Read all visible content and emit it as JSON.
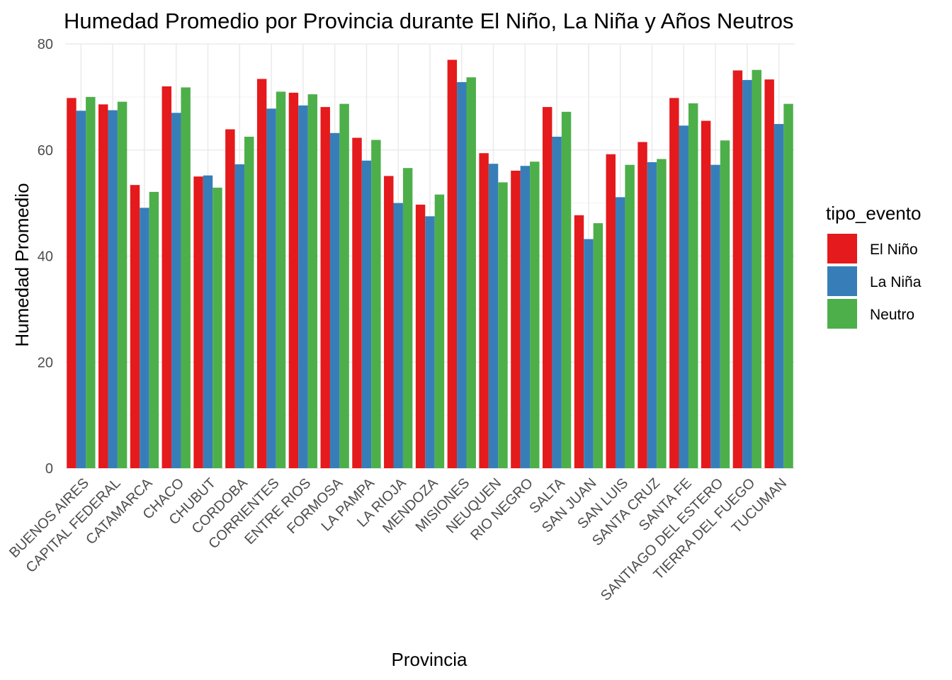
{
  "chart_data": {
    "type": "bar",
    "title": "Humedad Promedio por Provincia durante El Niño, La Niña y Años Neutros",
    "xlabel": "Provincia",
    "ylabel": "Humedad Promedio",
    "ylim": [
      0,
      80
    ],
    "yticks": [
      "0",
      "20",
      "40",
      "60",
      "80"
    ],
    "grid": true,
    "legend": {
      "title": "tipo_evento",
      "position": "right"
    },
    "categories": [
      "BUENOS AIRES",
      "CAPITAL FEDERAL",
      "CATAMARCA",
      "CHACO",
      "CHUBUT",
      "CORDOBA",
      "CORRIENTES",
      "ENTRE RIOS",
      "FORMOSA",
      "LA PAMPA",
      "LA RIOJA",
      "MENDOZA",
      "MISIONES",
      "NEUQUEN",
      "RIO NEGRO",
      "SALTA",
      "SAN JUAN",
      "SAN LUIS",
      "SANTA CRUZ",
      "SANTA FE",
      "SANTIAGO DEL ESTERO",
      "TIERRA DEL FUEGO",
      "TUCUMAN"
    ],
    "series": [
      {
        "name": "El Niño",
        "color": "#e41a1c",
        "values": [
          69.8,
          68.6,
          53.4,
          72.0,
          55.0,
          63.9,
          73.4,
          70.8,
          68.1,
          62.3,
          55.1,
          49.7,
          77.0,
          59.4,
          56.1,
          68.1,
          47.7,
          59.2,
          61.5,
          69.8,
          65.5,
          75.0,
          73.3
        ]
      },
      {
        "name": "La Niña",
        "color": "#377eb8",
        "values": [
          67.4,
          67.5,
          49.1,
          67.0,
          55.2,
          57.3,
          67.8,
          68.4,
          63.2,
          58.0,
          50.0,
          47.5,
          72.8,
          57.4,
          57.0,
          62.5,
          43.2,
          51.1,
          57.7,
          64.6,
          57.2,
          73.2,
          64.9
        ]
      },
      {
        "name": "Neutro",
        "color": "#4daf4a",
        "values": [
          70.0,
          69.1,
          52.1,
          71.8,
          52.9,
          62.5,
          71.0,
          70.5,
          68.7,
          61.9,
          56.6,
          51.6,
          73.7,
          53.9,
          57.8,
          67.2,
          46.2,
          57.2,
          58.3,
          68.8,
          61.8,
          75.1,
          68.7
        ]
      }
    ]
  }
}
